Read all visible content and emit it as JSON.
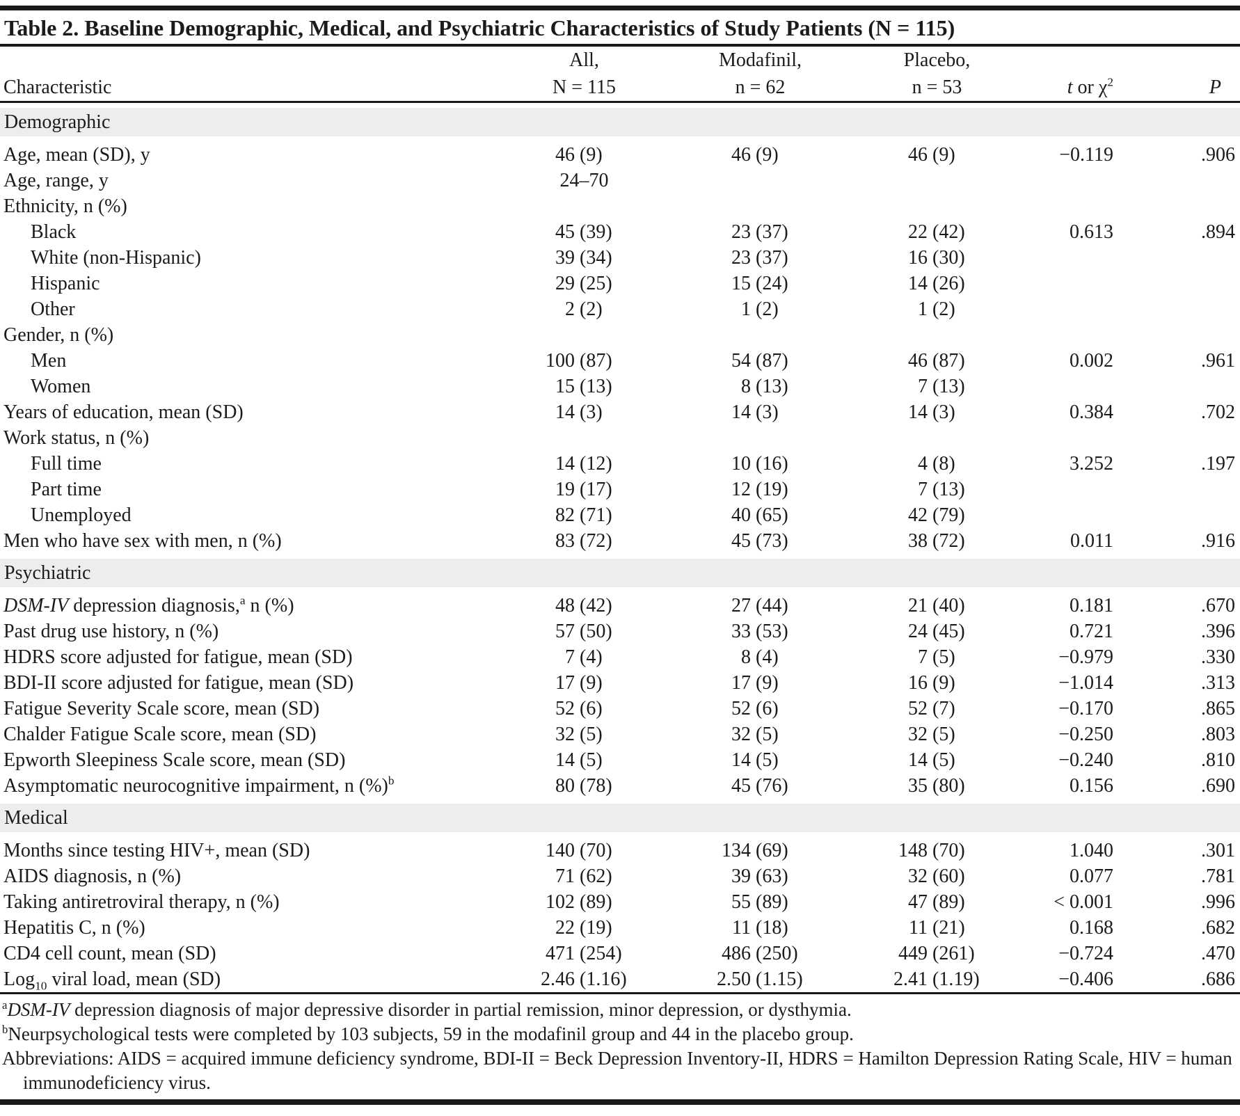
{
  "table": {
    "title": "Table 2. Baseline Demographic, Medical, and Psychiatric Characteristics of Study Patients (N = 115)",
    "columns": {
      "characteristic": "Characteristic",
      "groups": [
        {
          "line1": "All,",
          "line2": "N = 115"
        },
        {
          "line1": "Modafinil,",
          "line2": "n = 62"
        },
        {
          "line1": "Placebo,",
          "line2": "n = 53"
        }
      ],
      "stat": "<i>t</i> or χ<sup>2</sup>",
      "p": "<i>P</i>"
    },
    "rows": [
      {
        "type": "section",
        "label": "Demographic"
      },
      {
        "type": "data",
        "indent": 0,
        "label": "Age, mean (SD), y",
        "all": "46 (9)",
        "modafinil": "46 (9)",
        "placebo": "46 (9)",
        "stat": "−0.119",
        "p": ".906"
      },
      {
        "type": "data",
        "indent": 0,
        "label": "Age, range, y",
        "all": "24–70",
        "modafinil": "",
        "placebo": "",
        "stat": "",
        "p": ""
      },
      {
        "type": "data",
        "indent": 0,
        "label": "Ethnicity, n (%)",
        "all": "",
        "modafinil": "",
        "placebo": "",
        "stat": "",
        "p": ""
      },
      {
        "type": "data",
        "indent": 1,
        "label": "Black",
        "all": "45 (39)",
        "modafinil": "23 (37)",
        "placebo": "22 (42)",
        "stat": "0.613",
        "p": ".894"
      },
      {
        "type": "data",
        "indent": 1,
        "label": "White (non-Hispanic)",
        "all": "39 (34)",
        "modafinil": "23 (37)",
        "placebo": "16 (30)",
        "stat": "",
        "p": ""
      },
      {
        "type": "data",
        "indent": 1,
        "label": "Hispanic",
        "all": "29 (25)",
        "modafinil": "15 (24)",
        "placebo": "14 (26)",
        "stat": "",
        "p": ""
      },
      {
        "type": "data",
        "indent": 1,
        "label": "Other",
        "all": "2 (2)",
        "modafinil": "1 (2)",
        "placebo": "1 (2)",
        "stat": "",
        "p": ""
      },
      {
        "type": "data",
        "indent": 0,
        "label": "Gender, n (%)",
        "all": "",
        "modafinil": "",
        "placebo": "",
        "stat": "",
        "p": ""
      },
      {
        "type": "data",
        "indent": 1,
        "label": "Men",
        "all": "100 (87)",
        "modafinil": "54 (87)",
        "placebo": "46 (87)",
        "stat": "0.002",
        "p": ".961"
      },
      {
        "type": "data",
        "indent": 1,
        "label": "Women",
        "all": "15 (13)",
        "modafinil": "8 (13)",
        "placebo": "7 (13)",
        "stat": "",
        "p": ""
      },
      {
        "type": "data",
        "indent": 0,
        "label": "Years of education, mean (SD)",
        "all": "14 (3)",
        "modafinil": "14 (3)",
        "placebo": "14 (3)",
        "stat": "0.384",
        "p": ".702"
      },
      {
        "type": "data",
        "indent": 0,
        "label": "Work status, n (%)",
        "all": "",
        "modafinil": "",
        "placebo": "",
        "stat": "",
        "p": ""
      },
      {
        "type": "data",
        "indent": 1,
        "label": "Full time",
        "all": "14 (12)",
        "modafinil": "10 (16)",
        "placebo": "4 (8)",
        "stat": "3.252",
        "p": ".197"
      },
      {
        "type": "data",
        "indent": 1,
        "label": "Part time",
        "all": "19 (17)",
        "modafinil": "12 (19)",
        "placebo": "7 (13)",
        "stat": "",
        "p": ""
      },
      {
        "type": "data",
        "indent": 1,
        "label": "Unemployed",
        "all": "82 (71)",
        "modafinil": "40 (65)",
        "placebo": "42 (79)",
        "stat": "",
        "p": ""
      },
      {
        "type": "data",
        "indent": 0,
        "label": "Men who have sex with men, n (%)",
        "all": "83 (72)",
        "modafinil": "45 (73)",
        "placebo": "38 (72)",
        "stat": "0.011",
        "p": ".916"
      },
      {
        "type": "section",
        "label": "Psychiatric"
      },
      {
        "type": "data",
        "indent": 0,
        "label": "<i>DSM-IV</i> depression diagnosis,<sup>a</sup> n (%)",
        "all": "48 (42)",
        "modafinil": "27 (44)",
        "placebo": "21 (40)",
        "stat": "0.181",
        "p": ".670"
      },
      {
        "type": "data",
        "indent": 0,
        "label": "Past drug use history, n (%)",
        "all": "57 (50)",
        "modafinil": "33 (53)",
        "placebo": "24 (45)",
        "stat": "0.721",
        "p": ".396"
      },
      {
        "type": "data",
        "indent": 0,
        "label": "HDRS score adjusted for fatigue, mean (SD)",
        "all": "7 (4)",
        "modafinil": "8 (4)",
        "placebo": "7 (5)",
        "stat": "−0.979",
        "p": ".330"
      },
      {
        "type": "data",
        "indent": 0,
        "label": "BDI-II score adjusted for fatigue, mean (SD)",
        "all": "17 (9)",
        "modafinil": "17 (9)",
        "placebo": "16 (9)",
        "stat": "−1.014",
        "p": ".313"
      },
      {
        "type": "data",
        "indent": 0,
        "label": "Fatigue Severity Scale score, mean (SD)",
        "all": "52 (6)",
        "modafinil": "52 (6)",
        "placebo": "52 (7)",
        "stat": "−0.170",
        "p": ".865"
      },
      {
        "type": "data",
        "indent": 0,
        "label": "Chalder Fatigue Scale score, mean (SD)",
        "all": "32 (5)",
        "modafinil": "32 (5)",
        "placebo": "32 (5)",
        "stat": "−0.250",
        "p": ".803"
      },
      {
        "type": "data",
        "indent": 0,
        "label": "Epworth Sleepiness Scale score, mean (SD)",
        "all": "14 (5)",
        "modafinil": "14 (5)",
        "placebo": "14 (5)",
        "stat": "−0.240",
        "p": ".810"
      },
      {
        "type": "data",
        "indent": 0,
        "label": "Asymptomatic neurocognitive impairment, n (%)<sup>b</sup>",
        "all": "80 (78)",
        "modafinil": "45 (76)",
        "placebo": "35 (80)",
        "stat": "0.156",
        "p": ".690"
      },
      {
        "type": "section",
        "label": "Medical"
      },
      {
        "type": "data",
        "indent": 0,
        "label": "Months since testing HIV+, mean (SD)",
        "all": "140 (70)",
        "modafinil": "134 (69)",
        "placebo": "148 (70)",
        "stat": "1.040",
        "p": ".301"
      },
      {
        "type": "data",
        "indent": 0,
        "label": "AIDS diagnosis, n (%)",
        "all": "71 (62)",
        "modafinil": "39 (63)",
        "placebo": "32 (60)",
        "stat": "0.077",
        "p": ".781"
      },
      {
        "type": "data",
        "indent": 0,
        "label": "Taking antiretroviral therapy, n (%)",
        "all": "102 (89)",
        "modafinil": "55 (89)",
        "placebo": "47 (89)",
        "stat": "< 0.001",
        "p": ".996"
      },
      {
        "type": "data",
        "indent": 0,
        "label": "Hepatitis C, n (%)",
        "all": "22 (19)",
        "modafinil": "11 (18)",
        "placebo": "11 (21)",
        "stat": "0.168",
        "p": ".682"
      },
      {
        "type": "data",
        "indent": 0,
        "label": "CD4 cell count, mean (SD)",
        "all": "471 (254)",
        "modafinil": "486 (250)",
        "placebo": "449 (261)",
        "stat": "−0.724",
        "p": ".470"
      },
      {
        "type": "data",
        "indent": 0,
        "label": "Log<sub>10</sub> viral load, mean (SD)",
        "all": "2.46 (1.16)",
        "modafinil": "2.50 (1.15)",
        "placebo": "2.41 (1.19)",
        "stat": "−0.406",
        "p": ".686"
      }
    ],
    "footnotes": [
      "<sup>a</sup><i>DSM-IV</i> depression diagnosis of major depressive disorder in partial remission, minor depression, or dysthymia.",
      "<sup>b</sup>Neurpsychological tests were completed by 103 subjects, 59 in the modafinil group and 44 in the placebo group.",
      "Abbreviations: AIDS = acquired immune deficiency syndrome, BDI-II = Beck Depression Inventory-II, HDRS = Hamilton Depression Rating Scale, HIV = human immunodeficiency virus."
    ]
  }
}
